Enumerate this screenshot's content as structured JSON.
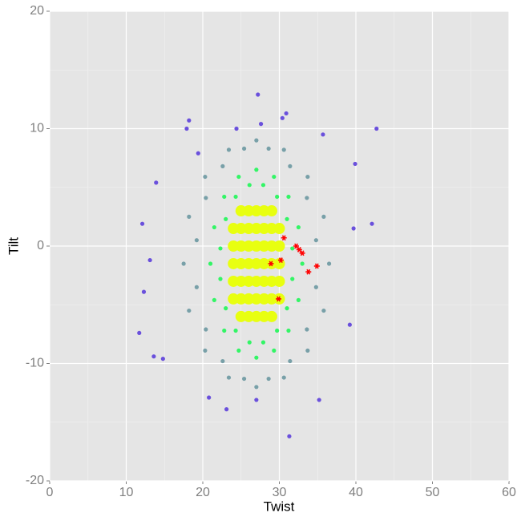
{
  "chart_data": {
    "type": "scatter",
    "x_label": "Twist",
    "y_label": "Tilt",
    "xlim": [
      0,
      60
    ],
    "ylim": [
      -20,
      20
    ],
    "xticks": [
      0,
      10,
      20,
      30,
      40,
      50,
      60
    ],
    "yticks": [
      -20,
      -10,
      0,
      10,
      20
    ],
    "grid": true,
    "series": [
      {
        "color": "#78a0a8",
        "marker": "dot",
        "x": [
          34.8,
          33.6,
          31.4,
          28.6,
          25.4,
          22.6,
          20.4,
          19.2,
          19.2,
          20.4,
          22.6,
          25.4,
          28.6,
          31.4,
          33.6,
          34.8,
          36.5,
          35.8,
          33.7,
          30.6,
          27,
          23.4,
          20.3,
          18.2,
          17.5,
          18.2,
          20.3,
          23.4,
          27,
          30.6,
          33.7,
          35.8
        ],
        "y": [
          0.5,
          4.1,
          6.8,
          8.3,
          8.3,
          6.8,
          4.1,
          0.5,
          -3.5,
          -7.1,
          -9.8,
          -11.3,
          -11.3,
          -9.8,
          -7.1,
          -3.5,
          -1.5,
          2.5,
          5.9,
          8.2,
          9,
          8.2,
          5.9,
          2.5,
          -1.5,
          -5.5,
          -8.9,
          -11.2,
          -12,
          -11.2,
          -8.9,
          -5.5
        ]
      },
      {
        "color": "#33f566",
        "marker": "dot",
        "x": [
          33,
          32.5,
          31.2,
          29.3,
          27,
          24.7,
          22.8,
          21.5,
          21,
          21.5,
          22.8,
          24.7,
          27,
          29.3,
          31.2,
          32.5,
          31.7,
          31,
          29.7,
          27.9,
          26.1,
          24.3,
          23,
          22.3,
          22.3,
          23,
          24.3,
          26.1,
          27.9,
          29.7,
          31,
          31.7
        ],
        "y": [
          -1.5,
          1.6,
          4.2,
          5.9,
          6.5,
          5.9,
          4.2,
          1.6,
          -1.5,
          -4.6,
          -7.2,
          -8.9,
          -9.5,
          -8.9,
          -7.2,
          -4.6,
          -0.2,
          2.3,
          4.2,
          5.2,
          5.2,
          4.2,
          2.3,
          -0.2,
          -2.8,
          -5.3,
          -7.2,
          -8.2,
          -8.2,
          -7.2,
          -5.3,
          -2.8
        ]
      },
      {
        "color": "#e8ff10",
        "marker": "dot",
        "x": [
          25,
          26,
          27,
          28,
          29,
          24,
          25,
          26,
          27,
          28,
          29,
          30,
          24,
          25,
          26,
          27,
          28,
          29,
          30,
          24,
          25,
          26,
          27,
          28,
          29,
          30,
          24,
          25,
          26,
          27,
          28,
          29,
          30,
          24,
          25,
          26,
          27,
          28,
          29,
          30,
          25,
          26,
          27,
          28,
          29
        ],
        "y": [
          -6,
          -6,
          -6,
          -6,
          -6,
          -4.5,
          -4.5,
          -4.5,
          -4.5,
          -4.5,
          -4.5,
          -4.5,
          -3,
          -3,
          -3,
          -3,
          -3,
          -3,
          -3,
          -1.5,
          -1.5,
          -1.5,
          -1.5,
          -1.5,
          -1.5,
          -1.5,
          0,
          0,
          0,
          0,
          0,
          0,
          0,
          1.5,
          1.5,
          1.5,
          1.5,
          1.5,
          1.5,
          1.5,
          3,
          3,
          3,
          3,
          3
        ]
      },
      {
        "color": "#6a50dc",
        "marker": "dot",
        "x": [
          42.7,
          27.2,
          30.9,
          30.4,
          18.2,
          17.9,
          24.4,
          27.6,
          35.7,
          39.9,
          42.1,
          11.7,
          12.1,
          12.3,
          13.6,
          13.9,
          31.3,
          23.1,
          20.8,
          35.2,
          27,
          14.8,
          13.1,
          39.7,
          39.2,
          19.4
        ],
        "y": [
          10,
          12.9,
          11.3,
          10.9,
          10.7,
          10,
          10,
          10.4,
          9.5,
          7,
          1.9,
          -7.4,
          1.9,
          -3.9,
          -9.4,
          5.4,
          -16.2,
          -13.9,
          -12.9,
          -13.1,
          -13.1,
          -9.6,
          -1.2,
          1.5,
          -6.7,
          7.9
        ]
      },
      {
        "color": "#ff0000",
        "marker": "star",
        "x": [
          30.6,
          32.2,
          32.6,
          33,
          28.9,
          30.2,
          34.9,
          33.8,
          29.9
        ],
        "y": [
          0.7,
          0,
          -0.3,
          -0.6,
          -1.5,
          -1.2,
          -1.7,
          -2.2,
          -4.5
        ]
      }
    ]
  }
}
